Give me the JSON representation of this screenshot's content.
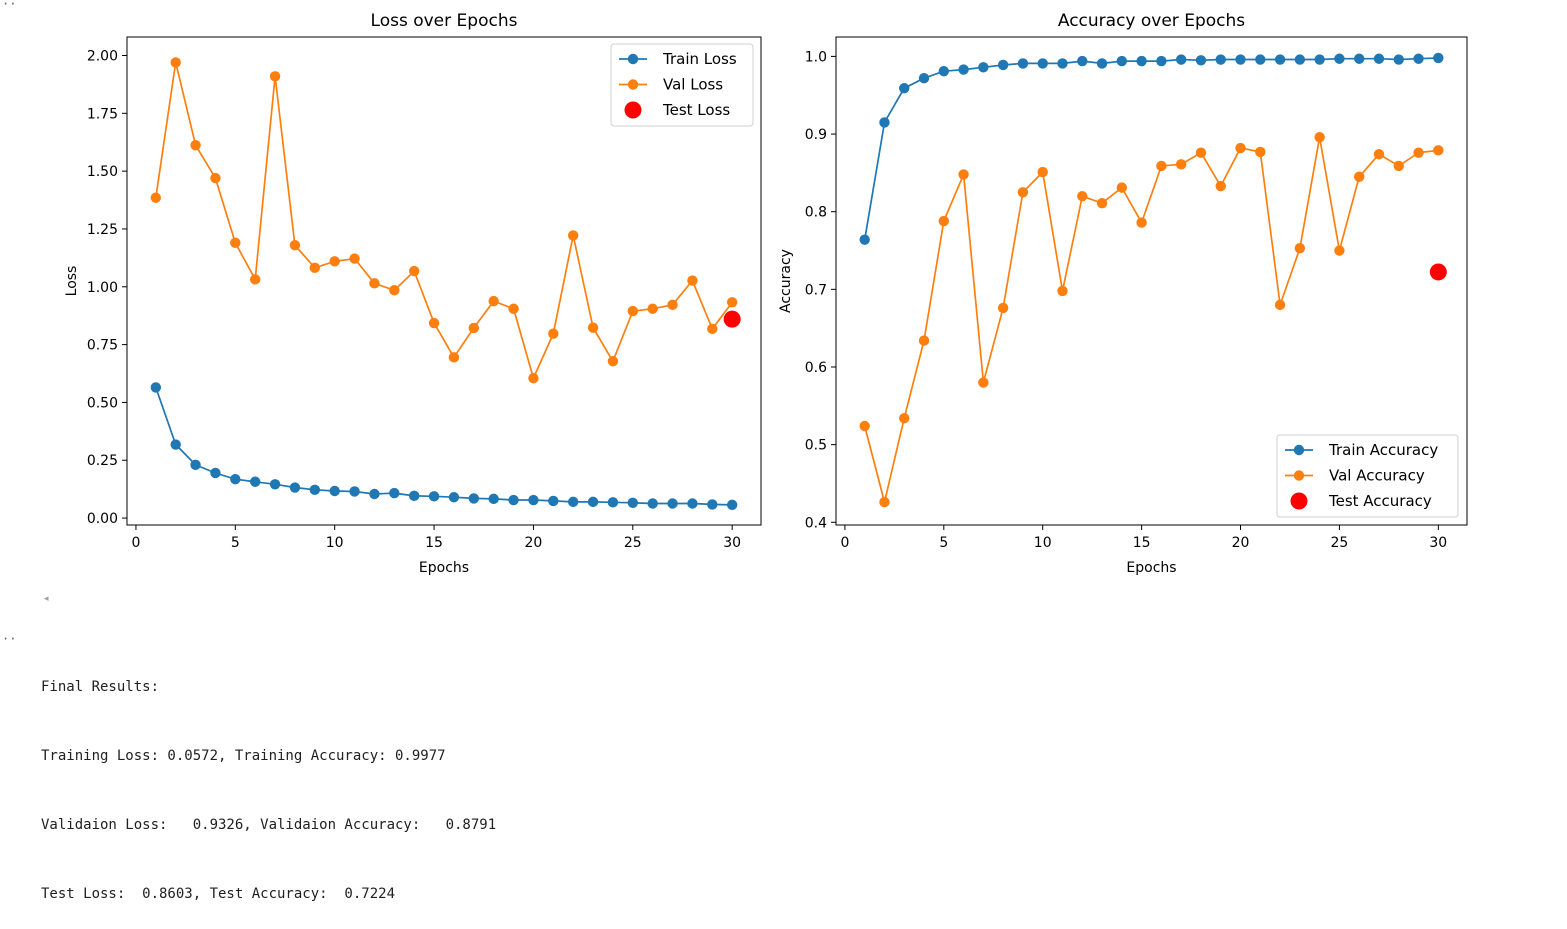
{
  "cell": {
    "top_marker": "··",
    "output_marker": "··",
    "scroll_indicator": "◂",
    "output_lines": [
      "Final Results:",
      "Training Loss: 0.0572, Training Accuracy: 0.9977",
      "Validaion Loss:   0.9326, Validaion Accuracy:   0.8791",
      "Test Loss:  0.8603, Test Accuracy:  0.7224"
    ]
  },
  "chart_data": [
    {
      "type": "line",
      "title": "Loss over Epochs",
      "xlabel": "Epochs",
      "ylabel": "Loss",
      "xlim": [
        -0.45,
        31.45
      ],
      "ylim": [
        -0.03,
        2.08
      ],
      "xticks": [
        0,
        5,
        10,
        15,
        20,
        25,
        30
      ],
      "yticks": [
        0.0,
        0.25,
        0.5,
        0.75,
        1.0,
        1.25,
        1.5,
        1.75,
        2.0
      ],
      "ytick_labels": [
        "0.00",
        "0.25",
        "0.50",
        "0.75",
        "1.00",
        "1.25",
        "1.50",
        "1.75",
        "2.00"
      ],
      "grid": false,
      "legend_position": "top-right",
      "x": [
        1,
        2,
        3,
        4,
        5,
        6,
        7,
        8,
        9,
        10,
        11,
        12,
        13,
        14,
        15,
        16,
        17,
        18,
        19,
        20,
        21,
        22,
        23,
        24,
        25,
        26,
        27,
        28,
        29,
        30
      ],
      "series": [
        {
          "name": "Train Loss",
          "color": "#1f77b4",
          "values": [
            0.565,
            0.318,
            0.23,
            0.195,
            0.168,
            0.157,
            0.146,
            0.132,
            0.122,
            0.117,
            0.115,
            0.104,
            0.108,
            0.096,
            0.094,
            0.09,
            0.085,
            0.083,
            0.078,
            0.078,
            0.074,
            0.07,
            0.07,
            0.068,
            0.066,
            0.063,
            0.063,
            0.063,
            0.059,
            0.057
          ]
        },
        {
          "name": "Val Loss",
          "color": "#ff7f0e",
          "values": [
            1.385,
            1.97,
            1.612,
            1.47,
            1.19,
            1.032,
            1.91,
            1.18,
            1.082,
            1.11,
            1.122,
            1.015,
            0.985,
            1.068,
            0.843,
            0.695,
            0.822,
            0.938,
            0.905,
            0.605,
            0.797,
            1.222,
            0.823,
            0.678,
            0.895,
            0.905,
            0.922,
            1.027,
            0.818,
            0.933
          ]
        }
      ],
      "points": [
        {
          "name": "Test Loss",
          "color": "#ff0000",
          "x": 30,
          "y": 0.8603
        }
      ]
    },
    {
      "type": "line",
      "title": "Accuracy over Epochs",
      "xlabel": "Epochs",
      "ylabel": "Accuracy",
      "xlim": [
        -0.45,
        31.45
      ],
      "ylim": [
        0.3965,
        1.025
      ],
      "xticks": [
        0,
        5,
        10,
        15,
        20,
        25,
        30
      ],
      "yticks": [
        0.4,
        0.5,
        0.6,
        0.7,
        0.8,
        0.9,
        1.0
      ],
      "ytick_labels": [
        "0.4",
        "0.5",
        "0.6",
        "0.7",
        "0.8",
        "0.9",
        "1.0"
      ],
      "grid": false,
      "legend_position": "bottom-right",
      "x": [
        1,
        2,
        3,
        4,
        5,
        6,
        7,
        8,
        9,
        10,
        11,
        12,
        13,
        14,
        15,
        16,
        17,
        18,
        19,
        20,
        21,
        22,
        23,
        24,
        25,
        26,
        27,
        28,
        29,
        30
      ],
      "series": [
        {
          "name": "Train Accuracy",
          "color": "#1f77b4",
          "values": [
            0.764,
            0.915,
            0.959,
            0.972,
            0.981,
            0.983,
            0.986,
            0.989,
            0.991,
            0.991,
            0.991,
            0.994,
            0.991,
            0.994,
            0.994,
            0.994,
            0.996,
            0.995,
            0.996,
            0.996,
            0.996,
            0.996,
            0.996,
            0.996,
            0.997,
            0.997,
            0.997,
            0.996,
            0.997,
            0.998
          ]
        },
        {
          "name": "Val Accuracy",
          "color": "#ff7f0e",
          "values": [
            0.524,
            0.426,
            0.534,
            0.634,
            0.788,
            0.848,
            0.58,
            0.676,
            0.825,
            0.851,
            0.698,
            0.82,
            0.811,
            0.831,
            0.786,
            0.859,
            0.861,
            0.876,
            0.833,
            0.882,
            0.877,
            0.68,
            0.753,
            0.896,
            0.75,
            0.845,
            0.874,
            0.859,
            0.876,
            0.879
          ]
        }
      ],
      "points": [
        {
          "name": "Test Accuracy",
          "color": "#ff0000",
          "x": 30,
          "y": 0.7224
        }
      ]
    }
  ]
}
